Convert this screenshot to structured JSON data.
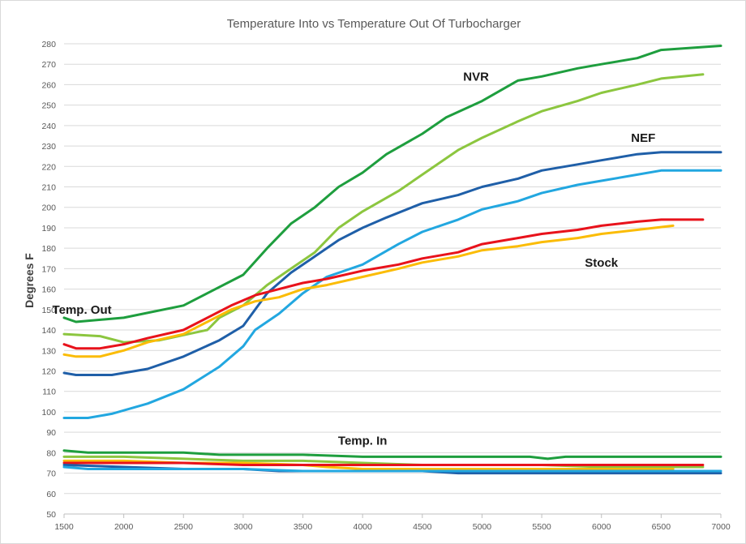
{
  "chart_data": {
    "type": "line",
    "title": "Temperature Into vs Temperature Out Of Turbocharger",
    "xlabel": "",
    "ylabel": "Degrees F",
    "xlim": [
      1500,
      7000
    ],
    "ylim": [
      50,
      280
    ],
    "x_ticks": [
      1500,
      2000,
      2500,
      3000,
      3500,
      4000,
      4500,
      5000,
      5500,
      6000,
      6500,
      7000
    ],
    "y_ticks": [
      50,
      60,
      70,
      80,
      90,
      100,
      110,
      120,
      130,
      140,
      150,
      160,
      170,
      180,
      190,
      200,
      210,
      220,
      230,
      240,
      250,
      260,
      270,
      280
    ],
    "grid": "horizontal",
    "legend": "none",
    "annotations": [
      {
        "text": "NVR",
        "x": 4950,
        "y": 262
      },
      {
        "text": "NEF",
        "x": 6350,
        "y": 232
      },
      {
        "text": "Stock",
        "x": 6000,
        "y": 171
      },
      {
        "text": "Temp. Out",
        "x": 1650,
        "y": 148
      },
      {
        "text": "Temp. In",
        "x": 4000,
        "y": 84
      }
    ],
    "series": [
      {
        "name": "NVR out (dark green)",
        "color": "#1e9e3e",
        "x": [
          1500,
          1600,
          2000,
          2500,
          2700,
          3000,
          3200,
          3400,
          3600,
          3800,
          4000,
          4200,
          4500,
          4700,
          5000,
          5300,
          5500,
          5800,
          6000,
          6300,
          6500,
          7000
        ],
        "y": [
          146,
          144,
          146,
          152,
          158,
          167,
          180,
          192,
          200,
          210,
          217,
          226,
          236,
          244,
          252,
          262,
          264,
          268,
          270,
          273,
          277,
          279
        ]
      },
      {
        "name": "NVR out (light green)",
        "color": "#8cc63f",
        "x": [
          1500,
          1800,
          2000,
          2300,
          2700,
          2800,
          3000,
          3200,
          3400,
          3600,
          3800,
          4000,
          4300,
          4500,
          4800,
          5000,
          5300,
          5500,
          5800,
          6000,
          6300,
          6500,
          6850
        ],
        "y": [
          138,
          137,
          134,
          135,
          140,
          146,
          152,
          162,
          170,
          178,
          190,
          198,
          208,
          216,
          228,
          234,
          242,
          247,
          252,
          256,
          260,
          263,
          265
        ]
      },
      {
        "name": "NEF out (dark blue)",
        "color": "#1f5fa8",
        "x": [
          1500,
          1600,
          1900,
          2200,
          2500,
          2800,
          3000,
          3200,
          3400,
          3600,
          3800,
          4000,
          4200,
          4500,
          4800,
          5000,
          5300,
          5500,
          5800,
          6000,
          6300,
          6500,
          7000
        ],
        "y": [
          119,
          118,
          118,
          121,
          127,
          135,
          142,
          158,
          168,
          176,
          184,
          190,
          195,
          202,
          206,
          210,
          214,
          218,
          221,
          223,
          226,
          227,
          227
        ]
      },
      {
        "name": "NEF out (light blue)",
        "color": "#22a7e0",
        "x": [
          1500,
          1700,
          1900,
          2200,
          2500,
          2800,
          3000,
          3100,
          3300,
          3500,
          3700,
          4000,
          4300,
          4500,
          4800,
          5000,
          5300,
          5500,
          5800,
          6000,
          6300,
          6500,
          7000
        ],
        "y": [
          97,
          97,
          99,
          104,
          111,
          122,
          132,
          140,
          148,
          158,
          166,
          172,
          182,
          188,
          194,
          199,
          203,
          207,
          211,
          213,
          216,
          218,
          218
        ]
      },
      {
        "name": "Stock out (red)",
        "color": "#e8121b",
        "x": [
          1500,
          1600,
          1800,
          2000,
          2200,
          2500,
          2700,
          2900,
          3100,
          3300,
          3500,
          3700,
          4000,
          4300,
          4500,
          4800,
          5000,
          5300,
          5500,
          5800,
          6000,
          6300,
          6500,
          6850
        ],
        "y": [
          133,
          131,
          131,
          133,
          136,
          140,
          146,
          152,
          157,
          160,
          163,
          165,
          169,
          172,
          175,
          178,
          182,
          185,
          187,
          189,
          191,
          193,
          194,
          194
        ]
      },
      {
        "name": "Stock out (yellow)",
        "color": "#fbbc05",
        "x": [
          1500,
          1600,
          1800,
          2000,
          2200,
          2500,
          2700,
          2900,
          3100,
          3300,
          3500,
          3700,
          4000,
          4300,
          4500,
          4800,
          5000,
          5300,
          5500,
          5800,
          6000,
          6300,
          6600
        ],
        "y": [
          128,
          127,
          127,
          130,
          134,
          138,
          144,
          150,
          154,
          156,
          160,
          162,
          166,
          170,
          173,
          176,
          179,
          181,
          183,
          185,
          187,
          189,
          191
        ]
      },
      {
        "name": "NVR in (dark green)",
        "color": "#1e9e3e",
        "x": [
          1500,
          1700,
          2000,
          2500,
          2800,
          3000,
          3500,
          4000,
          4500,
          5000,
          5400,
          5550,
          5700,
          6000,
          6500,
          7000
        ],
        "y": [
          81,
          80,
          80,
          80,
          79,
          79,
          79,
          78,
          78,
          78,
          78,
          77,
          78,
          78,
          78,
          78
        ]
      },
      {
        "name": "NVR in (light green)",
        "color": "#8cc63f",
        "x": [
          1500,
          2000,
          2500,
          3000,
          3500,
          4000,
          4500,
          5000,
          5500,
          6000,
          6500,
          6850
        ],
        "y": [
          78,
          78,
          77,
          76,
          76,
          75,
          74,
          74,
          74,
          73,
          73,
          73
        ]
      },
      {
        "name": "Stock in (yellow)",
        "color": "#fbbc05",
        "x": [
          1500,
          2000,
          2500,
          3000,
          3500,
          3700,
          4000,
          4500,
          5000,
          5500,
          6000,
          6600
        ],
        "y": [
          76,
          76,
          75,
          75,
          74,
          73,
          72,
          72,
          72,
          72,
          72,
          72
        ]
      },
      {
        "name": "Stock in (red)",
        "color": "#e8121b",
        "x": [
          1500,
          2000,
          2500,
          3000,
          3500,
          4000,
          4500,
          5000,
          5500,
          6000,
          6500,
          6850
        ],
        "y": [
          75,
          75,
          75,
          74,
          74,
          74,
          74,
          74,
          74,
          74,
          74,
          74
        ]
      },
      {
        "name": "NEF in (dark blue)",
        "color": "#1f5fa8",
        "x": [
          1500,
          2000,
          2500,
          3000,
          3300,
          3500,
          4000,
          4500,
          4800,
          5000,
          5500,
          6000,
          6500,
          7000
        ],
        "y": [
          74,
          73,
          72,
          72,
          71,
          71,
          71,
          71,
          70,
          70,
          70,
          70,
          70,
          70
        ]
      },
      {
        "name": "NEF in (light blue)",
        "color": "#22a7e0",
        "x": [
          1500,
          1700,
          2000,
          2500,
          3000,
          3500,
          4000,
          4500,
          5000,
          5500,
          6000,
          6500,
          7000
        ],
        "y": [
          73,
          72,
          72,
          72,
          72,
          71,
          71,
          71,
          71,
          71,
          71,
          71,
          71
        ]
      }
    ]
  }
}
